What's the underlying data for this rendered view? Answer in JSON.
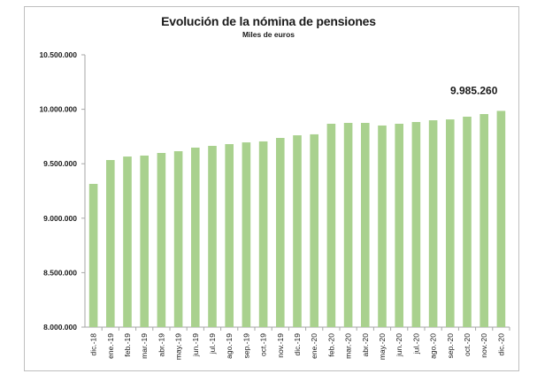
{
  "chart_data": {
    "type": "bar",
    "title": "Evolución de la nómina de pensiones",
    "subtitle": "Miles de euros",
    "xlabel": "",
    "ylabel": "",
    "ylim": [
      8000000,
      10500000
    ],
    "yticks": [
      8000000,
      8500000,
      9000000,
      9500000,
      10000000,
      10500000
    ],
    "ytick_labels": [
      "8.000.000",
      "8.500.000",
      "9.000.000",
      "9.500.000",
      "10.000.000",
      "10.500.000"
    ],
    "grid": false,
    "legend": "none",
    "bar_color": "#a9d18e",
    "categories": [
      "dic.-18",
      "ene.-19",
      "feb.-19",
      "mar.-19",
      "abr.-19",
      "may.-19",
      "jun.-19",
      "jul.-19",
      "ago.-19",
      "sep.-19",
      "oct.-19",
      "nov.-19",
      "dic.-19",
      "ene.-20",
      "feb.-20",
      "mar.-20",
      "abr.-20",
      "may.-20",
      "jun.-20",
      "jul.-20",
      "ago.-20",
      "sep.-20",
      "oct.-20",
      "nov.-20",
      "dic.-20"
    ],
    "values": [
      9315000,
      9534000,
      9566000,
      9575000,
      9599000,
      9615000,
      9648000,
      9664000,
      9680000,
      9696000,
      9705000,
      9737000,
      9761000,
      9770000,
      9867000,
      9875000,
      9875000,
      9851000,
      9867000,
      9883000,
      9899000,
      9907000,
      9932000,
      9956000,
      9985260
    ],
    "annotations": [
      {
        "category": "dic.-20",
        "label": "9.985.260"
      }
    ]
  }
}
